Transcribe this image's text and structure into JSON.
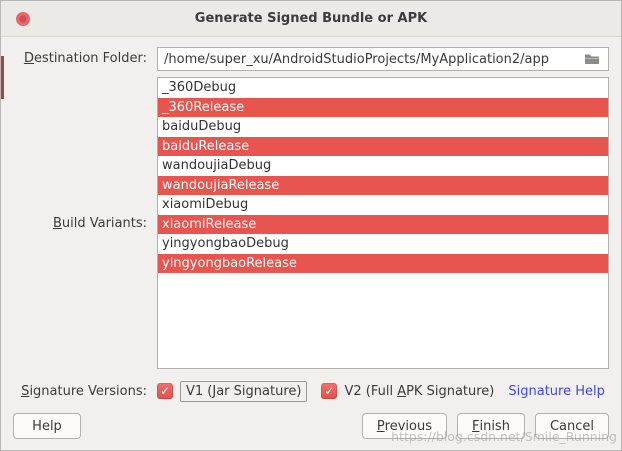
{
  "window": {
    "title": "Generate Signed Bundle or APK"
  },
  "colors": {
    "selection_red": "#e8544e",
    "checkbox_red": "#e4504b",
    "link_blue": "#3d4af0",
    "close_dot_red": "#e9666c"
  },
  "destination": {
    "label": {
      "text": "Destination Folder:",
      "mnemonic": 0
    },
    "value": "/home/super_xu/AndroidStudioProjects/MyApplication2/app"
  },
  "build_variants": {
    "label": {
      "text": "Build Variants:",
      "mnemonic": 0
    },
    "items": [
      {
        "label": "_360Debug",
        "selected": false
      },
      {
        "label": "_360Release",
        "selected": true
      },
      {
        "label": "baiduDebug",
        "selected": false
      },
      {
        "label": "baiduRelease",
        "selected": true
      },
      {
        "label": "wandoujiaDebug",
        "selected": false
      },
      {
        "label": "wandoujiaRelease",
        "selected": true
      },
      {
        "label": "xiaomiDebug",
        "selected": false
      },
      {
        "label": "xiaomiRelease",
        "selected": true
      },
      {
        "label": "yingyongbaoDebug",
        "selected": false
      },
      {
        "label": "yingyongbaoRelease",
        "selected": true
      }
    ]
  },
  "signature": {
    "label": {
      "text": "Signature Versions:",
      "mnemonic": 0
    },
    "v1": {
      "text": "V1 (Jar Signature)",
      "mnemonic": 4,
      "checked": true
    },
    "v2": {
      "text": "V2 (Full APK Signature)",
      "mnemonic": 9,
      "checked": true
    },
    "help_link": "Signature Help"
  },
  "buttons": {
    "help": "Help",
    "previous": {
      "text": "Previous",
      "mnemonic": 0
    },
    "finish": {
      "text": "Finish",
      "mnemonic": 0
    },
    "cancel": "Cancel"
  },
  "watermark": "https://blog.csdn.net/Smile_Running"
}
